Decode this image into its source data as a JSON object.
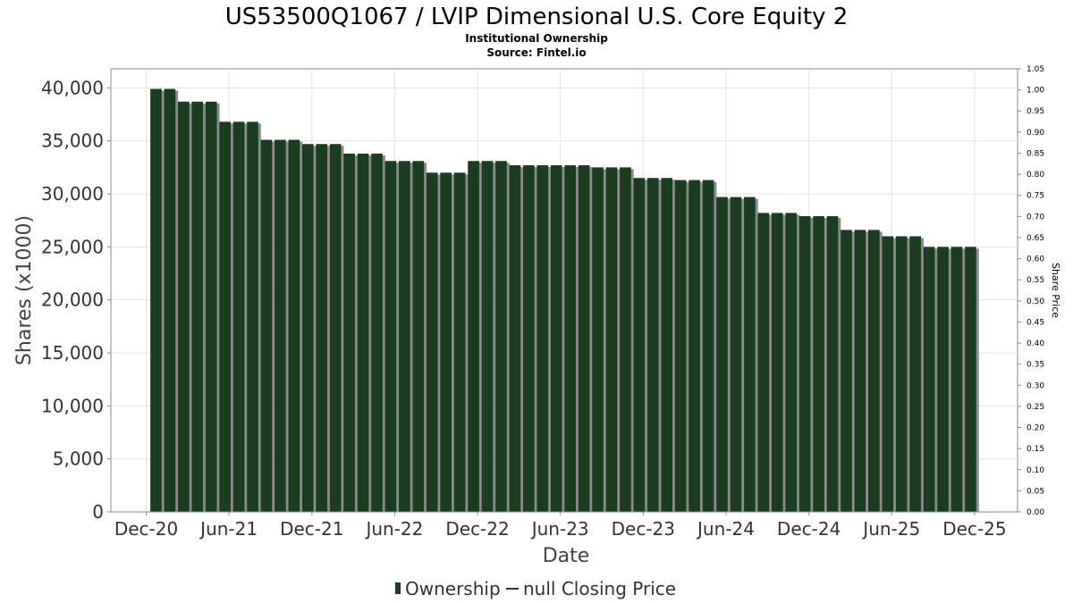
{
  "chart_data": {
    "type": "bar",
    "title": "US53500Q1067 / LVIP Dimensional U.S. Core Equity 2",
    "subtitle_lines": [
      "Institutional Ownership",
      "Source: Fintel.io"
    ],
    "xlabel": "Date",
    "ylabel": "Shares (x1000)",
    "y2label": "Share Price",
    "ylim": [
      0,
      41800
    ],
    "y2lim": [
      0,
      1.05
    ],
    "yticks": [
      0,
      5000,
      10000,
      15000,
      20000,
      25000,
      30000,
      35000,
      40000
    ],
    "ytick_labels": [
      "0",
      "5,000",
      "10,000",
      "15,000",
      "20,000",
      "25,000",
      "30,000",
      "35,000",
      "40,000"
    ],
    "y2tick_labels": [
      "0.00",
      "0.05",
      "0.10",
      "0.15",
      "0.20",
      "0.25",
      "0.30",
      "0.35",
      "0.40",
      "0.45",
      "0.50",
      "0.55",
      "0.60",
      "0.65",
      "0.70",
      "0.75",
      "0.80",
      "0.85",
      "0.90",
      "0.95",
      "1.00",
      "1.05"
    ],
    "xtick_labels": [
      "Dec-20",
      "Jun-21",
      "Dec-21",
      "Jun-22",
      "Dec-22",
      "Jun-23",
      "Dec-23",
      "Jun-24",
      "Dec-24",
      "Jun-25",
      "Dec-25"
    ],
    "xtick_months": [
      0,
      6,
      12,
      18,
      24,
      30,
      36,
      42,
      48,
      54,
      60
    ],
    "grid": true,
    "bar_color": "#1a3d20",
    "series": [
      {
        "name": "Ownership",
        "start_month": 0.3,
        "values": [
          39900,
          39900,
          38700,
          38700,
          38700,
          36800,
          36800,
          36800,
          35100,
          35100,
          35100,
          34700,
          34700,
          34700,
          33800,
          33800,
          33800,
          33100,
          33100,
          33100,
          32000,
          32000,
          32000,
          33100,
          33100,
          33100,
          32700,
          32700,
          32700,
          32700,
          32700,
          32700,
          32500,
          32500,
          32500,
          31500,
          31500,
          31500,
          31300,
          31300,
          31300,
          29700,
          29700,
          29700,
          28200,
          28200,
          28200,
          27900,
          27900,
          27900,
          26600,
          26600,
          26600,
          26000,
          26000,
          26000,
          25000,
          25000,
          25000,
          25000
        ]
      }
    ],
    "legend": {
      "items": [
        "Ownership",
        "null Closing Price"
      ],
      "position": "bottom-center"
    }
  }
}
